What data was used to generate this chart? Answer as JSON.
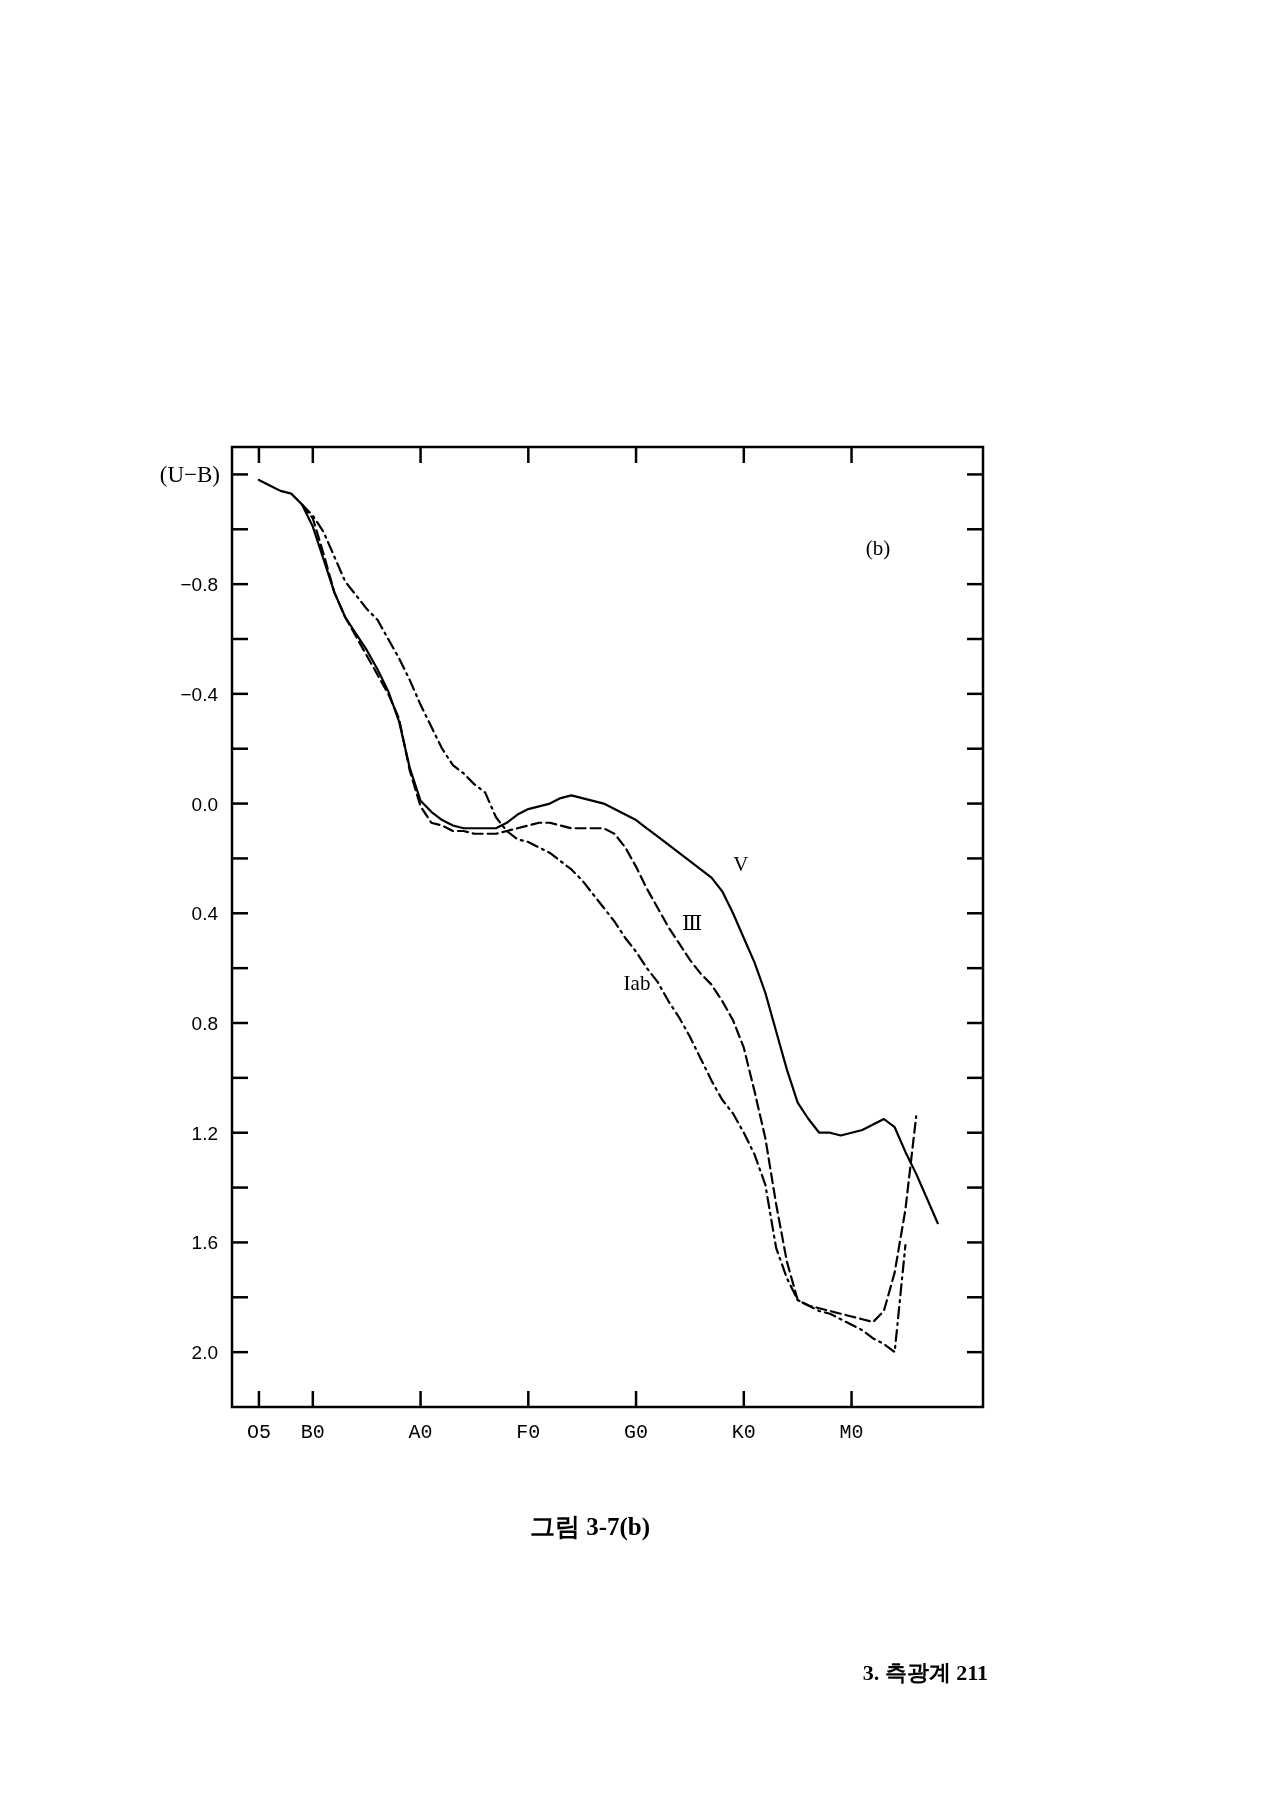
{
  "chart_data": {
    "type": "line",
    "ylabel": "(U−B)",
    "ylim": [
      2.2,
      -1.3
    ],
    "categories": [
      "O5",
      null,
      null,
      null,
      null,
      "B0",
      null,
      null,
      null,
      null,
      null,
      null,
      null,
      null,
      null,
      "A0",
      null,
      null,
      null,
      null,
      null,
      null,
      null,
      null,
      null,
      "F0",
      null,
      null,
      null,
      null,
      null,
      null,
      null,
      null,
      null,
      "G0",
      null,
      null,
      null,
      null,
      null,
      null,
      null,
      null,
      null,
      "K0",
      null,
      null,
      null,
      null,
      null,
      null,
      null,
      null,
      null,
      "M0",
      null,
      null,
      null,
      null,
      null,
      null,
      null,
      null
    ],
    "yticks": [
      {
        "value": -1.2,
        "label": null
      },
      {
        "value": -1.0,
        "label": null
      },
      {
        "value": -0.8,
        "label": "−0.8"
      },
      {
        "value": -0.6,
        "label": null
      },
      {
        "value": -0.4,
        "label": "−0.4"
      },
      {
        "value": -0.2,
        "label": null
      },
      {
        "value": 0.0,
        "label": "0.0"
      },
      {
        "value": 0.2,
        "label": null
      },
      {
        "value": 0.4,
        "label": "0.4"
      },
      {
        "value": 0.6,
        "label": null
      },
      {
        "value": 0.8,
        "label": "0.8"
      },
      {
        "value": 1.0,
        "label": null
      },
      {
        "value": 1.2,
        "label": "1.2"
      },
      {
        "value": 1.4,
        "label": null
      },
      {
        "value": 1.6,
        "label": "1.6"
      },
      {
        "value": 1.8,
        "label": null
      },
      {
        "value": 2.0,
        "label": "2.0"
      }
    ],
    "series": [
      {
        "name": "V",
        "color": "#000000",
        "line_style": "solid",
        "values": [
          -1.18,
          -1.16,
          -1.14,
          -1.13,
          -1.09,
          -1.01,
          -0.89,
          -0.77,
          -0.68,
          -0.62,
          -0.56,
          -0.49,
          -0.41,
          -0.3,
          -0.13,
          -0.01,
          0.03,
          0.06,
          0.08,
          0.09,
          0.09,
          0.09,
          0.09,
          0.07,
          0.04,
          0.02,
          0.01,
          0.0,
          -0.02,
          -0.03,
          -0.02,
          -0.01,
          0.0,
          0.02,
          0.04,
          0.06,
          0.09,
          0.12,
          0.15,
          0.18,
          0.21,
          0.24,
          0.27,
          0.32,
          0.4,
          0.49,
          0.58,
          0.69,
          0.83,
          0.97,
          1.09,
          1.15,
          1.2,
          1.2,
          1.21,
          1.2,
          1.19,
          1.17,
          1.15,
          1.18,
          1.27,
          1.35,
          1.44,
          1.53
        ]
      },
      {
        "name": "Ⅲ",
        "color": "#000000",
        "line_style": "dashed",
        "values": [
          null,
          null,
          null,
          null,
          -1.09,
          -1.04,
          -0.91,
          -0.77,
          -0.68,
          -0.61,
          -0.54,
          -0.47,
          -0.4,
          -0.31,
          -0.12,
          0.01,
          0.07,
          0.08,
          0.1,
          0.1,
          0.11,
          0.11,
          0.11,
          0.1,
          0.09,
          0.08,
          0.07,
          0.07,
          0.08,
          0.09,
          0.09,
          0.09,
          0.09,
          0.11,
          0.16,
          0.23,
          0.31,
          0.38,
          0.45,
          0.51,
          0.57,
          0.62,
          0.66,
          0.72,
          0.79,
          0.89,
          1.05,
          1.22,
          1.46,
          1.67,
          1.81,
          1.83,
          1.84,
          1.85,
          1.86,
          1.87,
          1.88,
          1.89,
          1.85,
          1.71,
          1.48,
          1.14,
          null,
          null
        ]
      },
      {
        "name": "Iab",
        "color": "#000000",
        "line_style": "dashdot",
        "values": [
          null,
          null,
          null,
          null,
          -1.09,
          -1.05,
          -0.99,
          -0.9,
          -0.81,
          -0.76,
          -0.71,
          -0.67,
          -0.6,
          -0.53,
          -0.45,
          -0.36,
          -0.28,
          -0.2,
          -0.14,
          -0.11,
          -0.07,
          -0.04,
          0.05,
          0.1,
          0.13,
          0.14,
          0.16,
          0.18,
          0.21,
          0.24,
          0.28,
          0.33,
          0.38,
          0.43,
          0.49,
          0.54,
          0.6,
          0.65,
          0.72,
          0.78,
          0.85,
          0.93,
          1.01,
          1.08,
          1.13,
          1.2,
          1.28,
          1.39,
          1.62,
          1.73,
          1.81,
          1.83,
          1.85,
          1.86,
          1.88,
          1.9,
          1.92,
          1.95,
          1.97,
          2.0,
          1.61,
          null,
          null,
          null
        ]
      }
    ],
    "annotations": [
      "(b)",
      "그림 3-7(b)",
      "3. 측광계 211"
    ]
  }
}
